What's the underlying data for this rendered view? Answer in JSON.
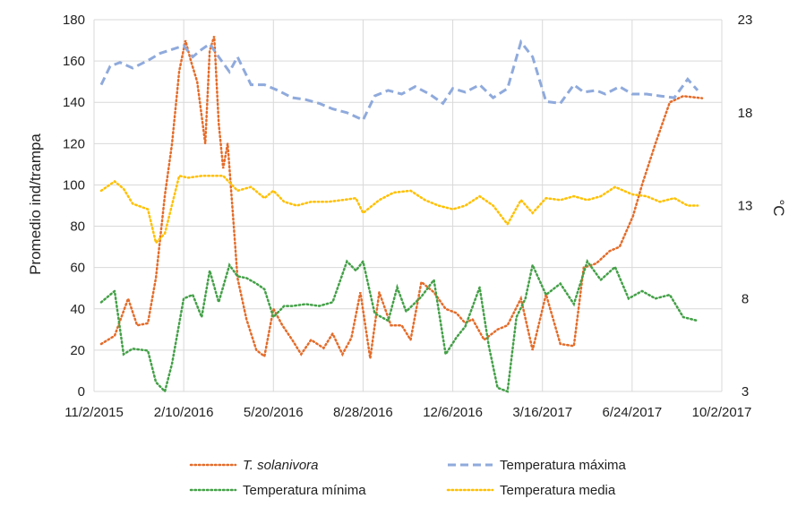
{
  "chart_data": {
    "type": "line",
    "ylabel_left": "Promedio ind/trampa",
    "ylabel_right": "°C",
    "x_ticks": [
      "11/2/2015",
      "2/10/2016",
      "5/20/2016",
      "8/28/2016",
      "12/6/2016",
      "3/16/2017",
      "6/24/2017",
      "10/2/2017"
    ],
    "x_range": [
      "2015-11-02",
      "2017-10-02"
    ],
    "ylim_left": [
      0,
      180
    ],
    "y_ticks_left": [
      0,
      20,
      40,
      60,
      80,
      100,
      120,
      140,
      160,
      180
    ],
    "ylim_right": [
      3,
      23
    ],
    "y_ticks_right": [
      3,
      8,
      13,
      18,
      23
    ],
    "grid": true,
    "legend_position": "bottom",
    "series": [
      {
        "name": "T. solanivora",
        "color": "#E46C2A",
        "style": "dotted",
        "axis": "left",
        "x": [
          "2015-11-10",
          "2015-11-25",
          "2015-12-10",
          "2015-12-20",
          "2016-01-01",
          "2016-01-10",
          "2016-01-20",
          "2016-01-28",
          "2016-02-05",
          "2016-02-12",
          "2016-02-18",
          "2016-02-25",
          "2016-03-05",
          "2016-03-10",
          "2016-03-15",
          "2016-03-20",
          "2016-03-25",
          "2016-03-30",
          "2016-04-05",
          "2016-04-10",
          "2016-04-20",
          "2016-05-01",
          "2016-05-10",
          "2016-05-20",
          "2016-05-30",
          "2016-06-10",
          "2016-06-20",
          "2016-07-01",
          "2016-07-15",
          "2016-07-25",
          "2016-08-05",
          "2016-08-15",
          "2016-08-25",
          "2016-09-05",
          "2016-09-15",
          "2016-09-28",
          "2016-10-10",
          "2016-10-20",
          "2016-11-01",
          "2016-11-15",
          "2016-11-28",
          "2016-12-10",
          "2016-12-20",
          "2016-12-28",
          "2017-01-10",
          "2017-01-25",
          "2017-02-05",
          "2017-02-20",
          "2017-03-05",
          "2017-03-20",
          "2017-04-05",
          "2017-04-20",
          "2017-05-01",
          "2017-05-15",
          "2017-05-30",
          "2017-06-10",
          "2017-06-25",
          "2017-07-05",
          "2017-07-20",
          "2017-08-05",
          "2017-08-20",
          "2017-09-10"
        ],
        "values": [
          23,
          27,
          45,
          32,
          33,
          55,
          95,
          120,
          155,
          170,
          160,
          150,
          120,
          165,
          172,
          130,
          108,
          120,
          85,
          55,
          35,
          20,
          17,
          40,
          32,
          25,
          18,
          25,
          21,
          28,
          18,
          26,
          48,
          16,
          48,
          32,
          32,
          25,
          53,
          48,
          40,
          38,
          33,
          35,
          25,
          30,
          32,
          45,
          20,
          47,
          23,
          22,
          60,
          62,
          68,
          70,
          85,
          100,
          120,
          140,
          143,
          142
        ],
        "_note_unused": null
      },
      {
        "name": "Temperatura máxima",
        "color": "#8FAADC",
        "style": "dashed",
        "axis": "right",
        "x": [
          "2015-11-10",
          "2015-11-20",
          "2015-12-01",
          "2015-12-15",
          "2016-01-01",
          "2016-01-15",
          "2016-01-28",
          "2016-02-10",
          "2016-02-20",
          "2016-03-01",
          "2016-03-10",
          "2016-03-20",
          "2016-04-01",
          "2016-04-10",
          "2016-04-25",
          "2016-05-10",
          "2016-05-25",
          "2016-06-10",
          "2016-06-25",
          "2016-07-10",
          "2016-07-25",
          "2016-08-10",
          "2016-08-28",
          "2016-09-10",
          "2016-09-25",
          "2016-10-10",
          "2016-10-25",
          "2016-11-10",
          "2016-11-25",
          "2016-12-06",
          "2016-12-20",
          "2017-01-05",
          "2017-01-20",
          "2017-02-05",
          "2017-02-20",
          "2017-03-05",
          "2017-03-20",
          "2017-04-05",
          "2017-04-20",
          "2017-05-01",
          "2017-05-15",
          "2017-05-25",
          "2017-06-10",
          "2017-06-24",
          "2017-07-10",
          "2017-07-25",
          "2017-08-10",
          "2017-08-25",
          "2017-09-05"
        ],
        "values": [
          19.5,
          20.5,
          20.7,
          20.4,
          20.8,
          21.2,
          21.4,
          21.6,
          21.0,
          21.4,
          21.7,
          21.0,
          20.2,
          21.0,
          19.5,
          19.5,
          19.2,
          18.8,
          18.7,
          18.5,
          18.2,
          18.0,
          17.6,
          18.9,
          19.2,
          19.0,
          19.4,
          19.0,
          18.5,
          19.3,
          19.1,
          19.5,
          18.8,
          19.3,
          21.8,
          21.0,
          18.6,
          18.5,
          19.5,
          19.1,
          19.2,
          19.0,
          19.4,
          19.0,
          19.0,
          18.9,
          18.8,
          19.8,
          19.2
        ],
        "_note_unused": null
      },
      {
        "name": "Temperatura mínima",
        "color": "#43A047",
        "style": "dotted",
        "axis": "right",
        "x": [
          "2015-11-10",
          "2015-11-25",
          "2015-12-05",
          "2015-12-15",
          "2016-01-01",
          "2016-01-10",
          "2016-01-20",
          "2016-01-28",
          "2016-02-10",
          "2016-02-20",
          "2016-03-01",
          "2016-03-10",
          "2016-03-20",
          "2016-04-01",
          "2016-04-10",
          "2016-04-20",
          "2016-05-01",
          "2016-05-10",
          "2016-05-20",
          "2016-06-01",
          "2016-06-10",
          "2016-06-25",
          "2016-07-10",
          "2016-07-25",
          "2016-08-10",
          "2016-08-20",
          "2016-08-28",
          "2016-09-10",
          "2016-09-25",
          "2016-10-05",
          "2016-10-15",
          "2016-11-01",
          "2016-11-15",
          "2016-11-28",
          "2016-12-10",
          "2016-12-20",
          "2017-01-05",
          "2017-01-15",
          "2017-01-25",
          "2017-02-05",
          "2017-02-15",
          "2017-02-25",
          "2017-03-05",
          "2017-03-20",
          "2017-04-05",
          "2017-04-20",
          "2017-05-05",
          "2017-05-20",
          "2017-06-05",
          "2017-06-20",
          "2017-07-05",
          "2017-07-20",
          "2017-08-05",
          "2017-08-20",
          "2017-09-05"
        ],
        "values": [
          7.8,
          8.4,
          5.0,
          5.3,
          5.2,
          3.5,
          3.0,
          4.5,
          8.0,
          8.2,
          7.0,
          9.5,
          7.8,
          9.8,
          9.2,
          9.1,
          8.8,
          8.5,
          7.0,
          7.6,
          7.6,
          7.7,
          7.6,
          7.8,
          10.0,
          9.5,
          10.0,
          7.2,
          6.8,
          8.6,
          7.3,
          8.1,
          9.0,
          5.0,
          5.9,
          6.5,
          8.6,
          5.5,
          3.2,
          3.0,
          7.0,
          8.0,
          9.8,
          8.2,
          8.8,
          7.7,
          10.0,
          9.0,
          9.7,
          8.0,
          8.4,
          8.0,
          8.2,
          7.0,
          6.8
        ],
        "_note_unused": null
      },
      {
        "name": "Temperatura media",
        "color": "#FFC000",
        "style": "dotted",
        "axis": "right",
        "x": [
          "2015-11-10",
          "2015-11-25",
          "2015-12-05",
          "2015-12-15",
          "2016-01-01",
          "2016-01-10",
          "2016-01-20",
          "2016-02-05",
          "2016-02-15",
          "2016-03-01",
          "2016-03-15",
          "2016-03-25",
          "2016-04-10",
          "2016-04-25",
          "2016-05-10",
          "2016-05-20",
          "2016-06-01",
          "2016-06-15",
          "2016-07-01",
          "2016-07-20",
          "2016-08-05",
          "2016-08-20",
          "2016-08-28",
          "2016-09-15",
          "2016-10-01",
          "2016-10-20",
          "2016-11-05",
          "2016-11-20",
          "2016-12-06",
          "2016-12-20",
          "2017-01-05",
          "2017-01-20",
          "2017-02-05",
          "2017-02-20",
          "2017-03-05",
          "2017-03-20",
          "2017-04-05",
          "2017-04-20",
          "2017-05-05",
          "2017-05-20",
          "2017-06-05",
          "2017-06-24",
          "2017-07-10",
          "2017-07-25",
          "2017-08-10",
          "2017-08-25",
          "2017-09-05"
        ],
        "values": [
          13.8,
          14.3,
          13.9,
          13.1,
          12.8,
          11.0,
          11.5,
          14.6,
          14.5,
          14.6,
          14.6,
          14.6,
          13.8,
          14.0,
          13.4,
          13.8,
          13.2,
          13.0,
          13.2,
          13.2,
          13.3,
          13.4,
          12.6,
          13.3,
          13.7,
          13.8,
          13.3,
          13.0,
          12.8,
          13.0,
          13.5,
          13.0,
          12.0,
          13.3,
          12.6,
          13.4,
          13.3,
          13.5,
          13.3,
          13.5,
          14.0,
          13.6,
          13.5,
          13.2,
          13.4,
          13.0,
          13.0
        ],
        "_note_unused": null
      }
    ]
  }
}
